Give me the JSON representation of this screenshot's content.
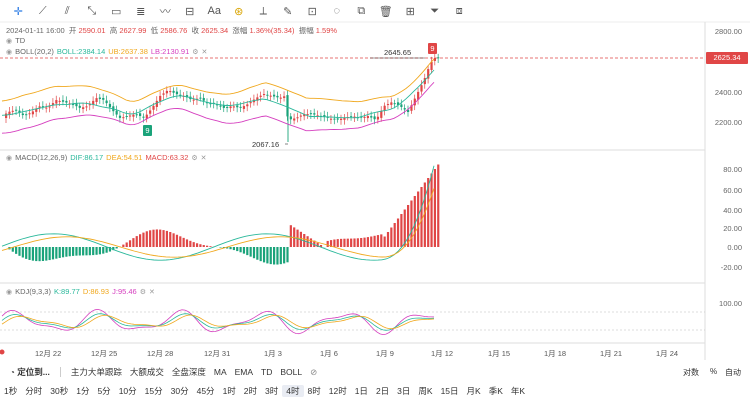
{
  "toolbar": {
    "tools": [
      {
        "icon": "crosshair-icon",
        "glyph": "✛",
        "active": true
      },
      {
        "icon": "trend-line-icon",
        "glyph": "⟋"
      },
      {
        "icon": "parallel-channel-icon",
        "glyph": "⫽"
      },
      {
        "icon": "ray-icon",
        "glyph": "⤡"
      },
      {
        "icon": "rectangle-icon",
        "glyph": "▭"
      },
      {
        "icon": "fibonacci-icon",
        "glyph": "≣"
      },
      {
        "icon": "wave-icon",
        "glyph": "〰"
      },
      {
        "icon": "price-range-icon",
        "glyph": "⊟"
      },
      {
        "icon": "text-icon",
        "glyph": "Aa"
      },
      {
        "icon": "favorite-icon",
        "glyph": "⊛",
        "fav": true
      },
      {
        "icon": "ruler-icon",
        "glyph": "⟂"
      },
      {
        "icon": "brush-icon",
        "glyph": "✎"
      },
      {
        "icon": "lock-icon",
        "glyph": "⊡"
      },
      {
        "icon": "eye-icon",
        "glyph": "◌"
      },
      {
        "icon": "copy-icon",
        "glyph": "⧉"
      },
      {
        "icon": "delete-icon",
        "glyph": "🗑"
      },
      {
        "icon": "layers-icon",
        "glyph": "⊞"
      },
      {
        "icon": "filter-icon",
        "glyph": "⏷"
      },
      {
        "icon": "settings-icon",
        "glyph": "⧈"
      }
    ]
  },
  "ohlc": {
    "date": "2024-01-11 16:00",
    "open_label": "开",
    "open": "2590.01",
    "high_label": "高",
    "high": "2627.99",
    "low_label": "低",
    "low": "2586.76",
    "close_label": "收",
    "close": "2625.34",
    "change_label": "涨幅",
    "change": "1.36%(35.34)",
    "amp_label": "振幅",
    "amp": "1.59%"
  },
  "indicators": {
    "td": "TD",
    "boll": {
      "name": "BOLL(20,2)",
      "boll": "BOLL:2384.14",
      "ub": "UB:2637.38",
      "lb": "LB:2130.91"
    },
    "macd": {
      "name": "MACD(12,26,9)",
      "dif": "DIF:86.17",
      "dea": "DEA:54.51",
      "macd": "MACD:63.32"
    },
    "kdj": {
      "name": "KDJ(9,3,3)",
      "k": "K:89.77",
      "d": "D:86.93",
      "j": "J:95.46"
    }
  },
  "price_axis": [
    "2800.00",
    "2600.00",
    "2400.00",
    "2200.00"
  ],
  "macd_axis": [
    "80.00",
    "60.00",
    "40.00",
    "20.00",
    "0.00",
    "-20.00"
  ],
  "kdj_axis": [
    "100.00"
  ],
  "current_price": "2625.34",
  "annotations": {
    "high": "2645.65",
    "low": "2067.16",
    "td_top": "9",
    "td_bottom": "9"
  },
  "x_labels": [
    "12月 22",
    "12月 25",
    "12月 28",
    "12月 31",
    "1月 3",
    "1月 6",
    "1月 9",
    "1月 12",
    "1月 15",
    "1月 18",
    "1月 21",
    "1月 24"
  ],
  "right_controls": {
    "log": "对数",
    "pct": "%",
    "auto": "自动"
  },
  "bottom_bar": {
    "title": "定位到...",
    "items": [
      "主力大单跟踪",
      "大额成交",
      "全盘深度",
      "MA",
      "EMA",
      "TD",
      "BOLL"
    ]
  },
  "periods": [
    "1秒",
    "分时",
    "30秒",
    "1分",
    "5分",
    "10分",
    "15分",
    "30分",
    "45分",
    "1时",
    "2时",
    "3时",
    "4时",
    "8时",
    "12时",
    "1日",
    "2日",
    "3日",
    "周K",
    "15日",
    "月K",
    "季K",
    "年K"
  ],
  "active_period": "4时",
  "colors": {
    "up": "#e04646",
    "down": "#1aa37a",
    "boll_mid": "#2ab89b",
    "boll_ub": "#f0a81e",
    "boll_lb": "#d53fbf",
    "dif": "#2ab89b",
    "dea": "#f0a81e",
    "k": "#2ab89b",
    "d": "#f0a81e",
    "j": "#d53fbf"
  }
}
